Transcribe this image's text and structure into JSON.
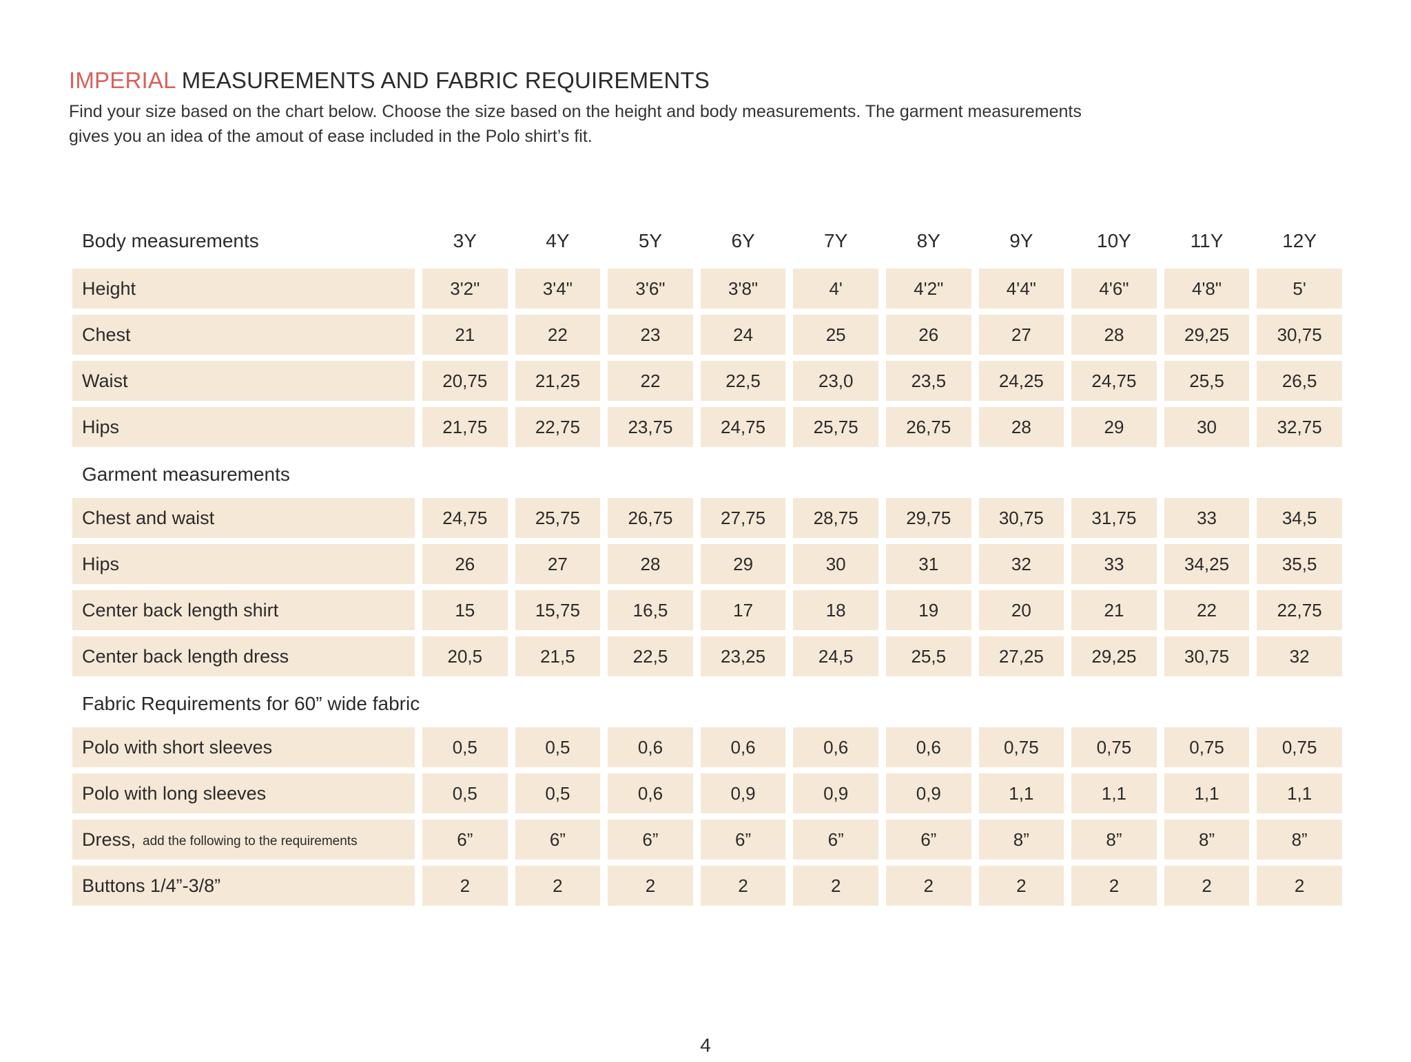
{
  "accent_color": "#d8605a",
  "cell_bg": "#f5e8d6",
  "header": {
    "title_accent": "IMPERIAL",
    "title_rest": "MEASUREMENTS AND FABRIC REQUIREMENTS",
    "subtitle": "Find your size based on the chart below. Choose the size based on the height and body measurements. The garment measurements\ngives you an idea of the amout of ease included in the Polo shirt’s fit."
  },
  "table": {
    "header_label": "Body measurements",
    "sizes": [
      "3Y",
      "4Y",
      "5Y",
      "6Y",
      "7Y",
      "8Y",
      "9Y",
      "10Y",
      "11Y",
      "12Y"
    ],
    "body_rows": [
      {
        "label": "Height",
        "values": [
          "3'2\"",
          "3'4\"",
          "3'6\"",
          "3'8\"",
          "4'",
          "4'2\"",
          "4'4\"",
          "4'6\"",
          "4'8\"",
          "5'"
        ]
      },
      {
        "label": "Chest",
        "values": [
          "21",
          "22",
          "23",
          "24",
          "25",
          "26",
          "27",
          "28",
          "29,25",
          "30,75"
        ]
      },
      {
        "label": "Waist",
        "values": [
          "20,75",
          "21,25",
          "22",
          "22,5",
          "23,0",
          "23,5",
          "24,25",
          "24,75",
          "25,5",
          "26,5"
        ]
      },
      {
        "label": "Hips",
        "values": [
          "21,75",
          "22,75",
          "23,75",
          "24,75",
          "25,75",
          "26,75",
          "28",
          "29",
          "30",
          "32,75"
        ]
      }
    ],
    "garment_heading": "Garment measurements",
    "garment_rows": [
      {
        "label": "Chest and waist",
        "values": [
          "24,75",
          "25,75",
          "26,75",
          "27,75",
          "28,75",
          "29,75",
          "30,75",
          "31,75",
          "33",
          "34,5"
        ]
      },
      {
        "label": "Hips",
        "values": [
          "26",
          "27",
          "28",
          "29",
          "30",
          "31",
          "32",
          "33",
          "34,25",
          "35,5"
        ]
      },
      {
        "label": "Center back length shirt",
        "values": [
          "15",
          "15,75",
          "16,5",
          "17",
          "18",
          "19",
          "20",
          "21",
          "22",
          "22,75"
        ]
      },
      {
        "label": "Center back length dress",
        "values": [
          "20,5",
          "21,5",
          "22,5",
          "23,25",
          "24,5",
          "25,5",
          "27,25",
          "29,25",
          "30,75",
          "32"
        ]
      }
    ],
    "fabric_heading": "Fabric Requirements for  60” wide fabric",
    "fabric_rows": [
      {
        "label": "Polo with short sleeves",
        "values": [
          "0,5",
          "0,5",
          "0,6",
          "0,6",
          "0,6",
          "0,6",
          "0,75",
          "0,75",
          "0,75",
          "0,75"
        ]
      },
      {
        "label": "Polo with long sleeves",
        "values": [
          "0,5",
          "0,5",
          "0,6",
          "0,9",
          "0,9",
          "0,9",
          "1,1",
          "1,1",
          "1,1",
          "1,1"
        ]
      },
      {
        "label": "Dress,",
        "note": "add the following to the requirements",
        "values": [
          "6”",
          "6”",
          "6”",
          "6”",
          "6”",
          "6”",
          "8”",
          "8”",
          "8”",
          "8”"
        ]
      },
      {
        "label": "Buttons 1/4”-3/8”",
        "values": [
          "2",
          "2",
          "2",
          "2",
          "2",
          "2",
          "2",
          "2",
          "2",
          "2"
        ]
      }
    ]
  },
  "footer": {
    "page_number": "4"
  }
}
